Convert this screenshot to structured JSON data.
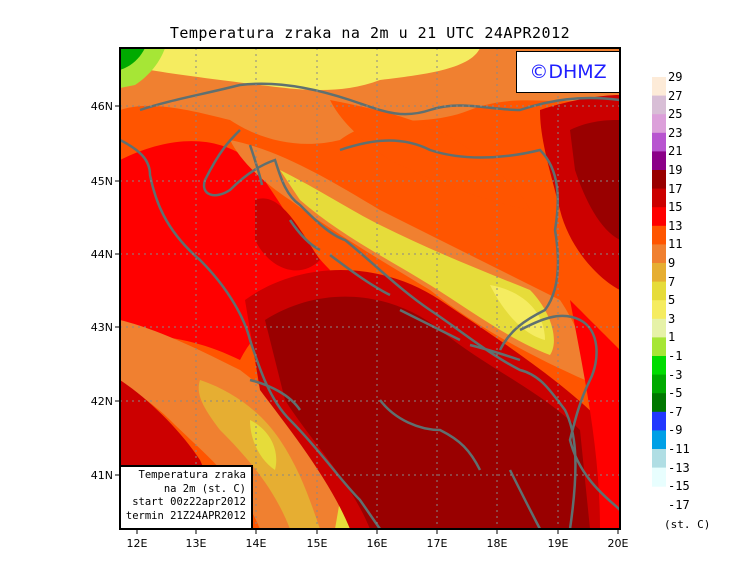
{
  "title": "Temperatura zraka na 2m u 21 UTC 24APR2012",
  "logo_text": "©DHMZ",
  "info_box": {
    "line1": "Temperatura zraka",
    "line2": "na 2m (st. C)",
    "line3": "start 00z22apr2012",
    "line4": "termin 21Z24APR2012"
  },
  "lon_ticks": [
    "12E",
    "13E",
    "14E",
    "15E",
    "16E",
    "17E",
    "18E",
    "19E",
    "20E"
  ],
  "lat_ticks": [
    "46N",
    "45N",
    "44N",
    "43N",
    "42N",
    "41N"
  ],
  "colorbar": {
    "units": "(st. C)",
    "labels": [
      "29",
      "27",
      "25",
      "23",
      "21",
      "19",
      "17",
      "15",
      "13",
      "11",
      "9",
      "7",
      "5",
      "3",
      "1",
      "-1",
      "-3",
      "-5",
      "-7",
      "-9",
      "-11",
      "-13",
      "-15",
      "-17"
    ],
    "colors": [
      "#fdebd8",
      "#d8bed6",
      "#dca0da",
      "#b855d0",
      "#8b0088",
      "#990000",
      "#cc0000",
      "#ff0000",
      "#ff5500",
      "#f08030",
      "#e6ae32",
      "#e6dc3a",
      "#f5ec60",
      "#e6f2a8",
      "#a6e636",
      "#00dc00",
      "#00aa00",
      "#007800",
      "#2238ff",
      "#00a0e6",
      "#b0dee4",
      "#e8fefe"
    ]
  }
}
